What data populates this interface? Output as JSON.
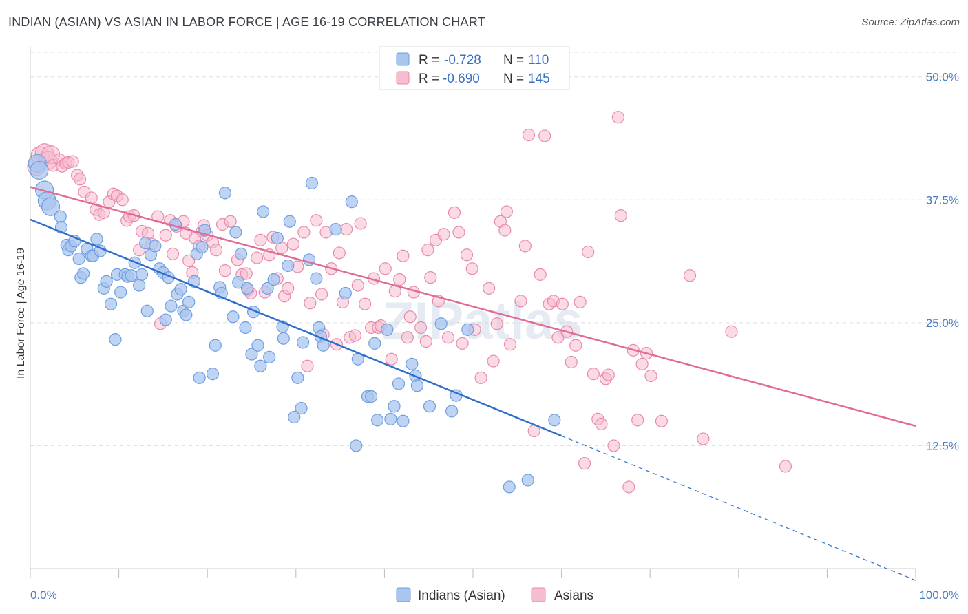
{
  "header": {
    "title": "INDIAN (ASIAN) VS ASIAN IN LABOR FORCE | AGE 16-19 CORRELATION CHART",
    "source": "Source: ZipAtlas.com"
  },
  "watermark": "ZIPatlas",
  "colors": {
    "blue_fill": "#a9c6ef",
    "blue_stroke": "#6d9ee0",
    "blue_line": "#2f6fcc",
    "pink_fill": "#f6bcd0",
    "pink_stroke": "#e98aab",
    "pink_line": "#e06b96",
    "grid": "#dddddd",
    "tick_text": "#4a7cc7"
  },
  "legend_box": {
    "rows": [
      {
        "r_label": "R =",
        "r_value": "-0.728",
        "n_label": "N =",
        "n_value": "110"
      },
      {
        "r_label": "R =",
        "r_value": "-0.690",
        "n_label": "N =",
        "n_value": "145"
      }
    ]
  },
  "chart_data": {
    "type": "scatter",
    "title": "INDIAN (ASIAN) VS ASIAN IN LABOR FORCE | AGE 16-19 CORRELATION CHART",
    "xlabel": "",
    "ylabel": "In Labor Force | Age 16-19",
    "xlim": [
      0,
      100
    ],
    "ylim": [
      0,
      52.5
    ],
    "x_tick_labels": [
      "0.0%",
      "100.0%"
    ],
    "y_ticks": [
      12.5,
      25.0,
      37.5,
      50.0
    ],
    "y_tick_labels": [
      "12.5%",
      "25.0%",
      "37.5%",
      "50.0%"
    ],
    "grid": true,
    "legend_position": "bottom-center",
    "series": [
      {
        "name": "Indians (Asian)",
        "r": -0.728,
        "n": 110,
        "trend": {
          "x0": 0,
          "y0": 35.5,
          "x1": 60,
          "y1": 13.5,
          "dashed_to_x": 100,
          "dashed_to_y": -1.2
        },
        "points": [
          [
            0.8,
            41.2
          ],
          [
            1.0,
            40.5
          ],
          [
            1.6,
            38.5
          ],
          [
            1.9,
            37.4
          ],
          [
            2.3,
            36.8
          ],
          [
            3.4,
            35.8
          ],
          [
            3.5,
            34.7
          ],
          [
            4.1,
            32.9
          ],
          [
            4.3,
            32.4
          ],
          [
            4.6,
            32.8
          ],
          [
            5.0,
            33.3
          ],
          [
            5.5,
            31.5
          ],
          [
            5.7,
            29.6
          ],
          [
            6.0,
            30.0
          ],
          [
            6.4,
            32.5
          ],
          [
            6.9,
            31.8
          ],
          [
            7.1,
            31.8
          ],
          [
            7.5,
            33.5
          ],
          [
            7.9,
            32.3
          ],
          [
            8.3,
            28.5
          ],
          [
            8.6,
            29.2
          ],
          [
            9.1,
            26.9
          ],
          [
            9.6,
            23.3
          ],
          [
            9.8,
            29.9
          ],
          [
            10.2,
            28.1
          ],
          [
            10.7,
            29.9
          ],
          [
            11.0,
            29.7
          ],
          [
            11.4,
            29.8
          ],
          [
            11.8,
            31.1
          ],
          [
            12.3,
            28.8
          ],
          [
            12.6,
            29.9
          ],
          [
            13.0,
            33.1
          ],
          [
            13.2,
            26.2
          ],
          [
            13.6,
            31.9
          ],
          [
            14.1,
            32.8
          ],
          [
            14.6,
            30.5
          ],
          [
            15.0,
            30.1
          ],
          [
            15.3,
            25.3
          ],
          [
            15.6,
            29.6
          ],
          [
            15.9,
            26.7
          ],
          [
            16.4,
            35.0
          ],
          [
            16.6,
            27.9
          ],
          [
            17.0,
            28.4
          ],
          [
            17.3,
            26.2
          ],
          [
            17.6,
            25.8
          ],
          [
            17.9,
            27.1
          ],
          [
            18.5,
            29.2
          ],
          [
            18.8,
            32.0
          ],
          [
            19.1,
            19.4
          ],
          [
            19.4,
            32.7
          ],
          [
            19.7,
            34.4
          ],
          [
            20.6,
            19.8
          ],
          [
            20.9,
            22.7
          ],
          [
            21.4,
            28.6
          ],
          [
            21.6,
            28.0
          ],
          [
            22.0,
            38.2
          ],
          [
            22.9,
            25.6
          ],
          [
            23.2,
            34.2
          ],
          [
            23.5,
            29.1
          ],
          [
            23.8,
            32.0
          ],
          [
            24.3,
            24.5
          ],
          [
            24.5,
            28.5
          ],
          [
            25.0,
            21.8
          ],
          [
            25.2,
            26.1
          ],
          [
            25.7,
            22.7
          ],
          [
            26.0,
            20.6
          ],
          [
            26.3,
            36.3
          ],
          [
            26.8,
            28.5
          ],
          [
            27.0,
            21.5
          ],
          [
            27.5,
            29.4
          ],
          [
            27.9,
            33.6
          ],
          [
            28.5,
            24.6
          ],
          [
            28.6,
            23.4
          ],
          [
            29.1,
            30.8
          ],
          [
            29.3,
            35.3
          ],
          [
            29.8,
            15.4
          ],
          [
            30.2,
            19.4
          ],
          [
            30.6,
            16.3
          ],
          [
            30.8,
            23.0
          ],
          [
            31.5,
            31.4
          ],
          [
            31.8,
            39.2
          ],
          [
            32.3,
            29.5
          ],
          [
            32.6,
            24.5
          ],
          [
            32.8,
            23.6
          ],
          [
            33.1,
            22.7
          ],
          [
            34.5,
            34.5
          ],
          [
            35.6,
            28.0
          ],
          [
            36.3,
            37.3
          ],
          [
            36.8,
            12.5
          ],
          [
            37.0,
            21.3
          ],
          [
            38.1,
            17.5
          ],
          [
            38.5,
            17.5
          ],
          [
            38.9,
            22.9
          ],
          [
            39.2,
            15.1
          ],
          [
            40.3,
            24.3
          ],
          [
            40.7,
            15.2
          ],
          [
            41.1,
            16.5
          ],
          [
            41.6,
            18.8
          ],
          [
            42.1,
            15.0
          ],
          [
            43.1,
            20.8
          ],
          [
            43.5,
            19.6
          ],
          [
            43.7,
            18.6
          ],
          [
            45.1,
            16.5
          ],
          [
            46.4,
            24.9
          ],
          [
            47.6,
            16.0
          ],
          [
            48.1,
            17.6
          ],
          [
            49.4,
            24.3
          ],
          [
            54.1,
            8.3
          ],
          [
            56.2,
            9.0
          ],
          [
            59.2,
            15.1
          ]
        ]
      },
      {
        "name": "Asians",
        "r": -0.69,
        "n": 145,
        "trend": {
          "x0": 0,
          "y0": 38.8,
          "x1": 100,
          "y1": 14.5
        },
        "points": [
          [
            0.7,
            40.9
          ],
          [
            1.1,
            42.0
          ],
          [
            1.6,
            42.3
          ],
          [
            2.0,
            41.5
          ],
          [
            2.3,
            42.1
          ],
          [
            2.6,
            41.0
          ],
          [
            3.3,
            41.6
          ],
          [
            3.6,
            40.9
          ],
          [
            4.0,
            41.2
          ],
          [
            4.3,
            41.3
          ],
          [
            4.8,
            41.4
          ],
          [
            5.3,
            40.0
          ],
          [
            5.6,
            39.6
          ],
          [
            6.1,
            38.3
          ],
          [
            6.9,
            37.7
          ],
          [
            7.4,
            36.5
          ],
          [
            7.8,
            36.0
          ],
          [
            8.3,
            36.2
          ],
          [
            8.9,
            37.3
          ],
          [
            9.4,
            38.1
          ],
          [
            9.8,
            37.9
          ],
          [
            10.4,
            37.5
          ],
          [
            10.9,
            35.4
          ],
          [
            11.2,
            35.8
          ],
          [
            11.7,
            35.9
          ],
          [
            12.3,
            32.4
          ],
          [
            12.6,
            34.3
          ],
          [
            13.3,
            34.1
          ],
          [
            13.7,
            33.0
          ],
          [
            14.4,
            35.8
          ],
          [
            14.7,
            24.9
          ],
          [
            15.3,
            33.9
          ],
          [
            15.8,
            35.4
          ],
          [
            16.1,
            32.0
          ],
          [
            16.5,
            34.8
          ],
          [
            17.3,
            35.3
          ],
          [
            17.6,
            34.1
          ],
          [
            17.9,
            31.3
          ],
          [
            18.3,
            30.1
          ],
          [
            18.6,
            33.6
          ],
          [
            19.1,
            32.8
          ],
          [
            19.4,
            34.3
          ],
          [
            19.6,
            34.9
          ],
          [
            20.0,
            33.9
          ],
          [
            20.6,
            33.2
          ],
          [
            21.0,
            32.4
          ],
          [
            21.7,
            35.0
          ],
          [
            22.0,
            30.3
          ],
          [
            22.6,
            35.3
          ],
          [
            23.4,
            31.4
          ],
          [
            23.9,
            29.9
          ],
          [
            24.4,
            30.0
          ],
          [
            24.6,
            28.3
          ],
          [
            24.9,
            28.0
          ],
          [
            25.6,
            31.6
          ],
          [
            26.0,
            33.4
          ],
          [
            26.5,
            28.1
          ],
          [
            27.0,
            31.9
          ],
          [
            27.4,
            33.7
          ],
          [
            27.9,
            29.5
          ],
          [
            28.4,
            32.6
          ],
          [
            28.7,
            27.7
          ],
          [
            29.1,
            28.5
          ],
          [
            29.7,
            33.0
          ],
          [
            30.2,
            30.7
          ],
          [
            30.9,
            34.2
          ],
          [
            31.3,
            20.6
          ],
          [
            31.6,
            27.0
          ],
          [
            32.3,
            35.4
          ],
          [
            32.9,
            27.9
          ],
          [
            33.1,
            23.8
          ],
          [
            33.4,
            34.2
          ],
          [
            34.0,
            30.5
          ],
          [
            34.6,
            22.8
          ],
          [
            34.9,
            32.1
          ],
          [
            35.3,
            27.1
          ],
          [
            35.7,
            34.5
          ],
          [
            36.1,
            23.5
          ],
          [
            36.7,
            23.7
          ],
          [
            37.0,
            28.8
          ],
          [
            37.3,
            35.1
          ],
          [
            37.8,
            26.9
          ],
          [
            38.5,
            24.5
          ],
          [
            38.8,
            29.5
          ],
          [
            39.3,
            24.5
          ],
          [
            39.6,
            24.7
          ],
          [
            40.1,
            30.5
          ],
          [
            40.8,
            21.3
          ],
          [
            41.2,
            28.2
          ],
          [
            41.7,
            29.4
          ],
          [
            42.1,
            31.8
          ],
          [
            42.6,
            23.5
          ],
          [
            42.9,
            25.6
          ],
          [
            43.3,
            28.1
          ],
          [
            44.1,
            24.5
          ],
          [
            44.7,
            23.1
          ],
          [
            44.9,
            32.4
          ],
          [
            45.2,
            29.6
          ],
          [
            45.8,
            33.4
          ],
          [
            46.1,
            27.2
          ],
          [
            46.7,
            34.0
          ],
          [
            47.2,
            23.5
          ],
          [
            47.9,
            36.2
          ],
          [
            48.4,
            34.2
          ],
          [
            48.8,
            22.9
          ],
          [
            49.3,
            31.9
          ],
          [
            49.9,
            30.5
          ],
          [
            50.2,
            24.3
          ],
          [
            50.9,
            19.4
          ],
          [
            51.8,
            28.5
          ],
          [
            52.3,
            21.1
          ],
          [
            52.7,
            24.9
          ],
          [
            53.1,
            35.3
          ],
          [
            53.6,
            34.4
          ],
          [
            53.8,
            36.3
          ],
          [
            54.2,
            22.8
          ],
          [
            55.4,
            27.2
          ],
          [
            55.9,
            32.8
          ],
          [
            56.3,
            44.1
          ],
          [
            56.9,
            14.0
          ],
          [
            57.6,
            29.9
          ],
          [
            58.1,
            44.0
          ],
          [
            58.6,
            26.9
          ],
          [
            59.1,
            27.2
          ],
          [
            59.6,
            23.5
          ],
          [
            60.1,
            26.9
          ],
          [
            60.6,
            24.1
          ],
          [
            61.1,
            21.0
          ],
          [
            61.6,
            22.7
          ],
          [
            62.1,
            27.1
          ],
          [
            62.6,
            10.7
          ],
          [
            63.0,
            32.2
          ],
          [
            63.6,
            19.8
          ],
          [
            64.1,
            15.2
          ],
          [
            64.5,
            14.7
          ],
          [
            65.0,
            19.3
          ],
          [
            65.3,
            19.7
          ],
          [
            65.9,
            12.5
          ],
          [
            66.4,
            45.9
          ],
          [
            66.7,
            35.9
          ],
          [
            67.6,
            8.3
          ],
          [
            68.1,
            22.2
          ],
          [
            68.6,
            15.1
          ],
          [
            69.1,
            20.8
          ],
          [
            69.6,
            21.9
          ],
          [
            70.1,
            19.6
          ],
          [
            71.3,
            15.0
          ],
          [
            74.5,
            29.8
          ],
          [
            76.0,
            13.2
          ],
          [
            79.2,
            24.1
          ],
          [
            85.3,
            10.4
          ]
        ]
      }
    ]
  },
  "bottom_legend": {
    "items": [
      {
        "label": "Indians (Asian)"
      },
      {
        "label": "Asians"
      }
    ]
  }
}
